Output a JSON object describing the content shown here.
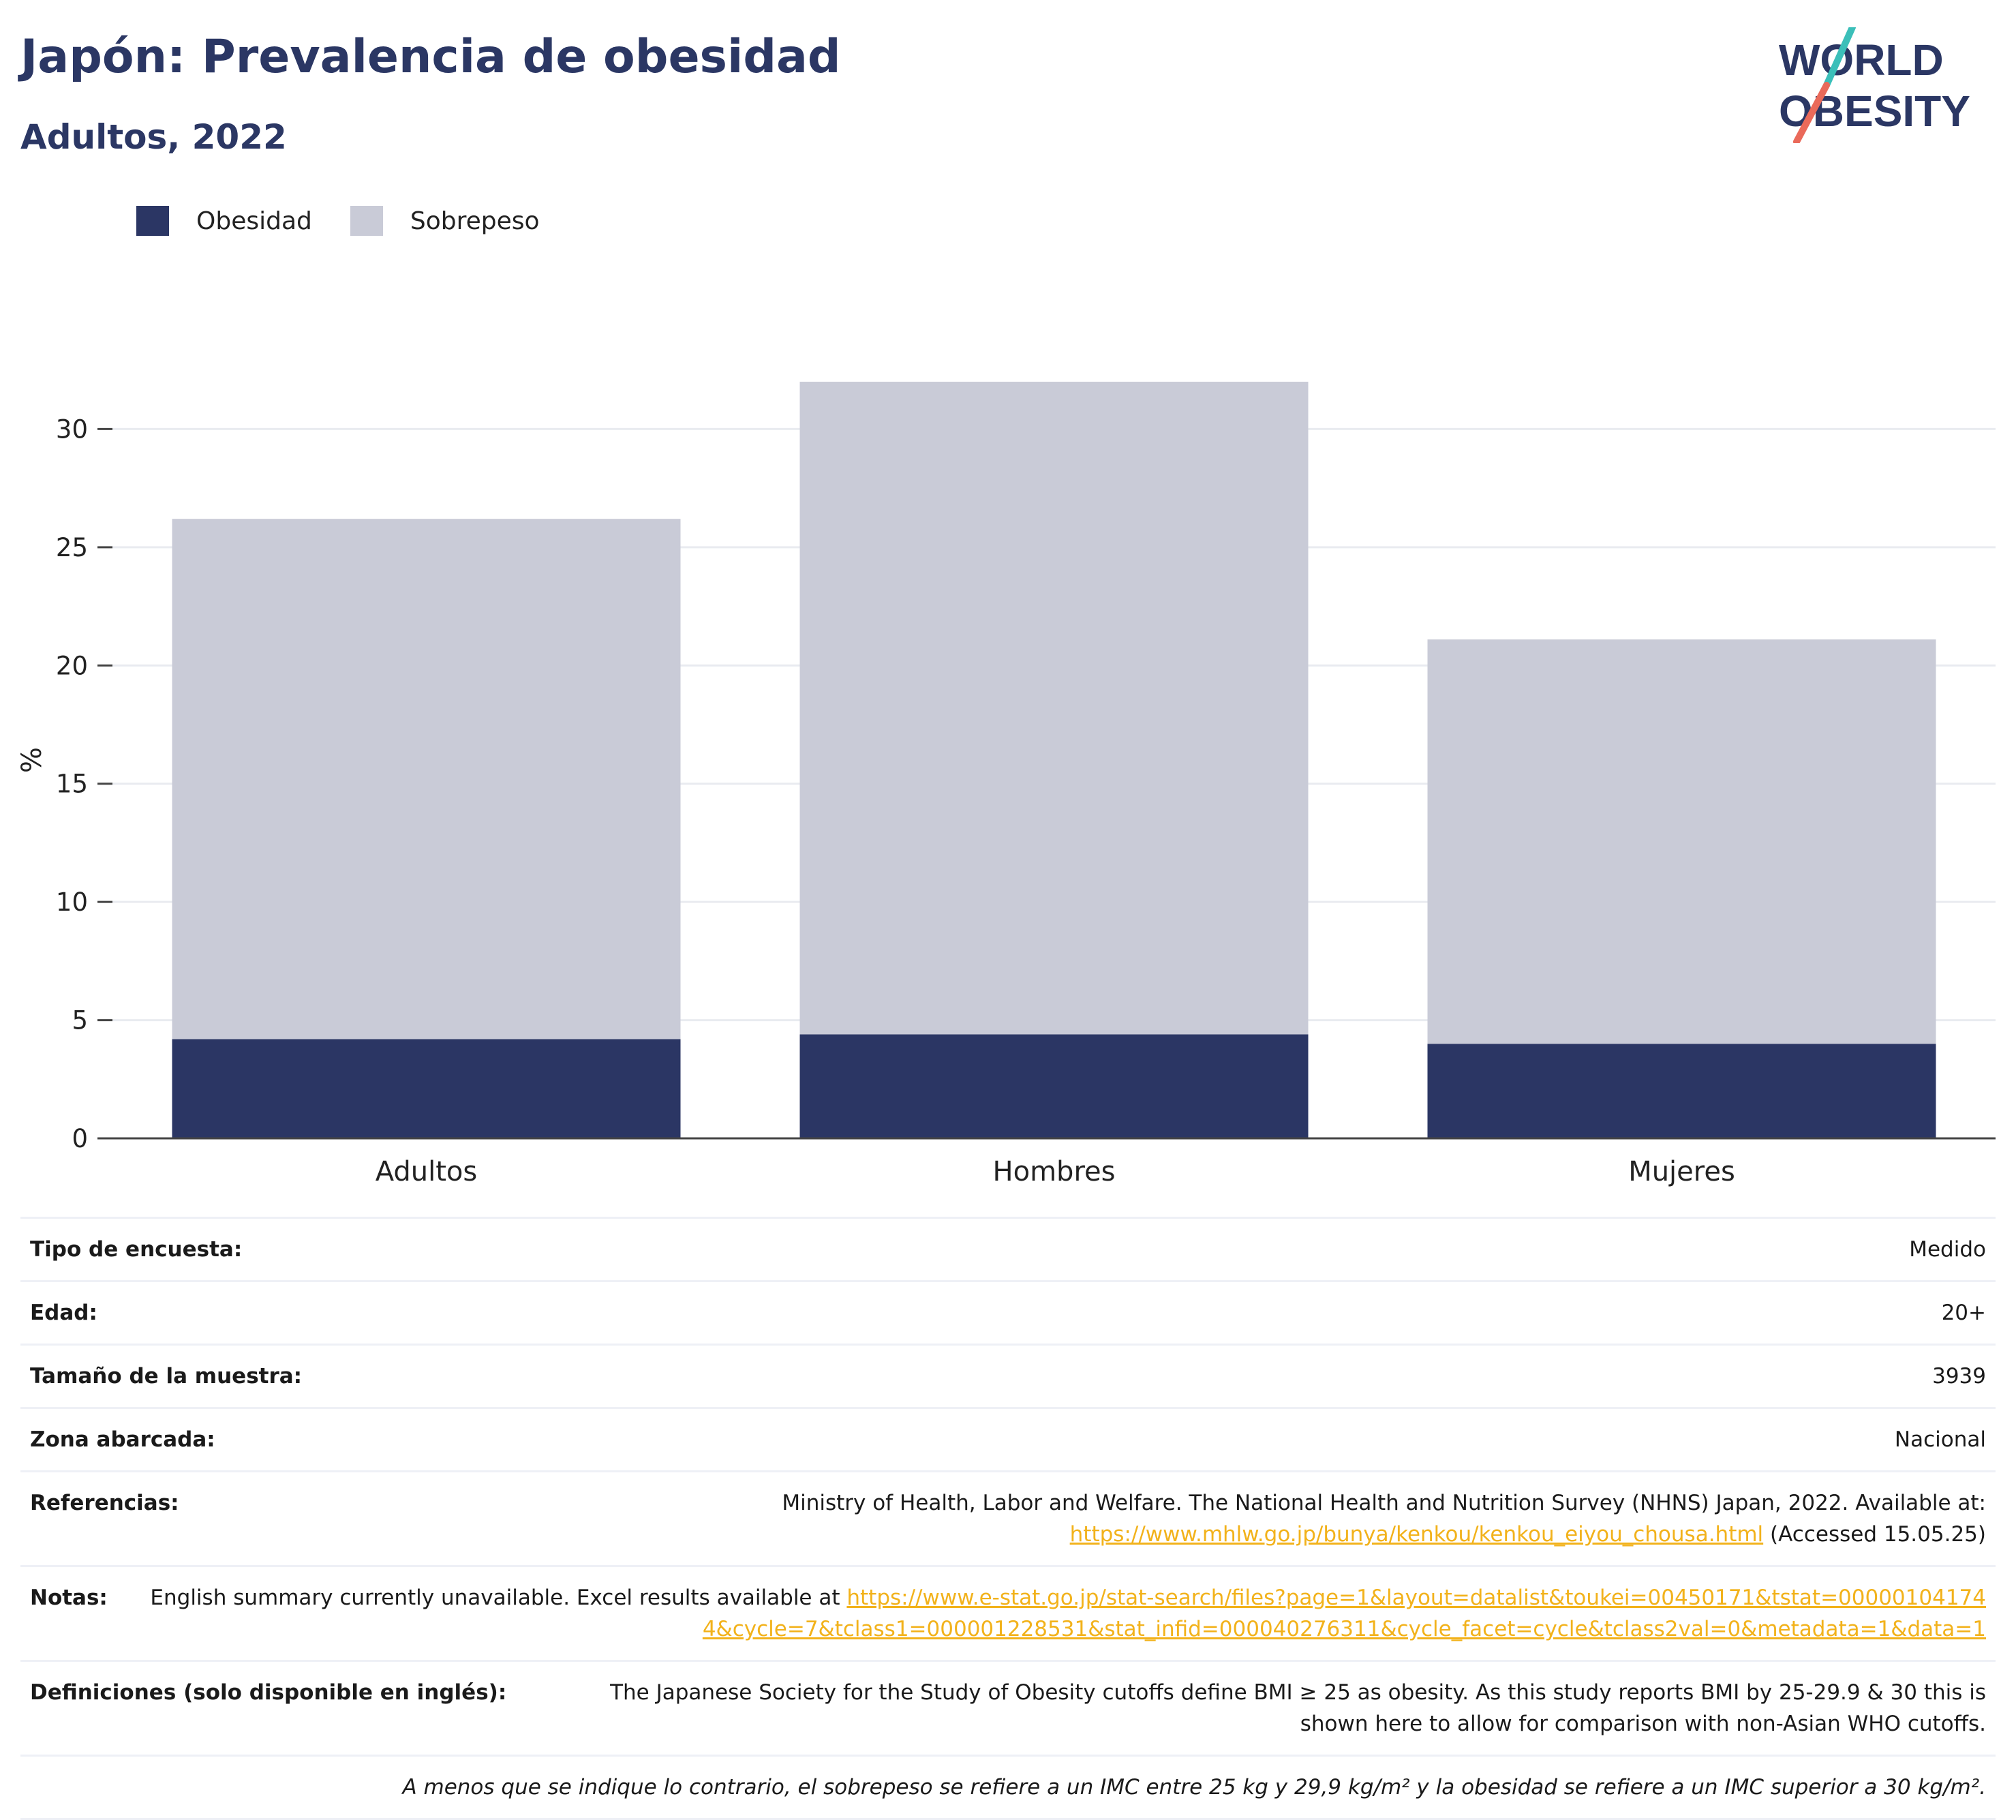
{
  "header": {
    "title": "Japón: Prevalencia de obesidad",
    "subtitle": "Adultos, 2022",
    "logo_line1": "WORLD",
    "logo_line2": "OBESITY"
  },
  "legend": [
    {
      "label": "Obesidad",
      "color": "#2b3664"
    },
    {
      "label": "Sobrepeso",
      "color": "#c9cbd7"
    }
  ],
  "chart_data": {
    "type": "bar",
    "stacked": true,
    "categories": [
      "Adultos",
      "Hombres",
      "Mujeres"
    ],
    "series": [
      {
        "name": "Obesidad",
        "values": [
          4.2,
          4.4,
          4.0
        ],
        "color": "#2b3664"
      },
      {
        "name": "Sobrepeso",
        "values": [
          22.0,
          27.6,
          17.1
        ],
        "color": "#c9cbd7"
      }
    ],
    "xlabel": "",
    "ylabel": "%",
    "ylim": [
      0,
      32
    ],
    "yticks": [
      0,
      5,
      10,
      15,
      20,
      25,
      30
    ],
    "grid": true
  },
  "info": {
    "rows": [
      {
        "label": "Tipo de encuesta:",
        "value": "Medido"
      },
      {
        "label": "Edad:",
        "value": "20+"
      },
      {
        "label": "Tamaño de la muestra:",
        "value": "3939"
      },
      {
        "label": "Zona abarcada:",
        "value": "Nacional"
      }
    ],
    "references": {
      "label": "Referencias:",
      "text": "Ministry of Health, Labor and Welfare. The National Health and Nutrition Survey (NHNS) Japan, 2022. Available at:",
      "link": "https://www.mhlw.go.jp/bunya/kenkou/kenkou_eiyou_chousa.html",
      "suffix": "(Accessed 15.05.25)"
    },
    "notes": {
      "label": "Notas:",
      "text": "English summary currently unavailable. Excel results available at",
      "link": "https://www.e-stat.go.jp/stat-search/files?page=1&layout=datalist&toukei=00450171&tstat=000001041744&cycle=7&tclass1=000001228531&stat_infid=000040276311&cycle_facet=cycle&tclass2val=0&metadata=1&data=1"
    },
    "definitions": {
      "label": "Definiciones (solo disponible en inglés):",
      "text": "The Japanese Society for the Study of Obesity cutoffs define BMI ≥ 25 as obesity. As this study reports BMI by 25-29.9 & 30 this is shown here to allow for comparison with non-Asian WHO cutoffs."
    },
    "footnote": "A menos que se indique lo contrario, el sobrepeso se refiere a un IMC entre 25 kg y 29,9 kg/m² y la obesidad se refiere a un IMC superior a 30 kg/m²."
  }
}
